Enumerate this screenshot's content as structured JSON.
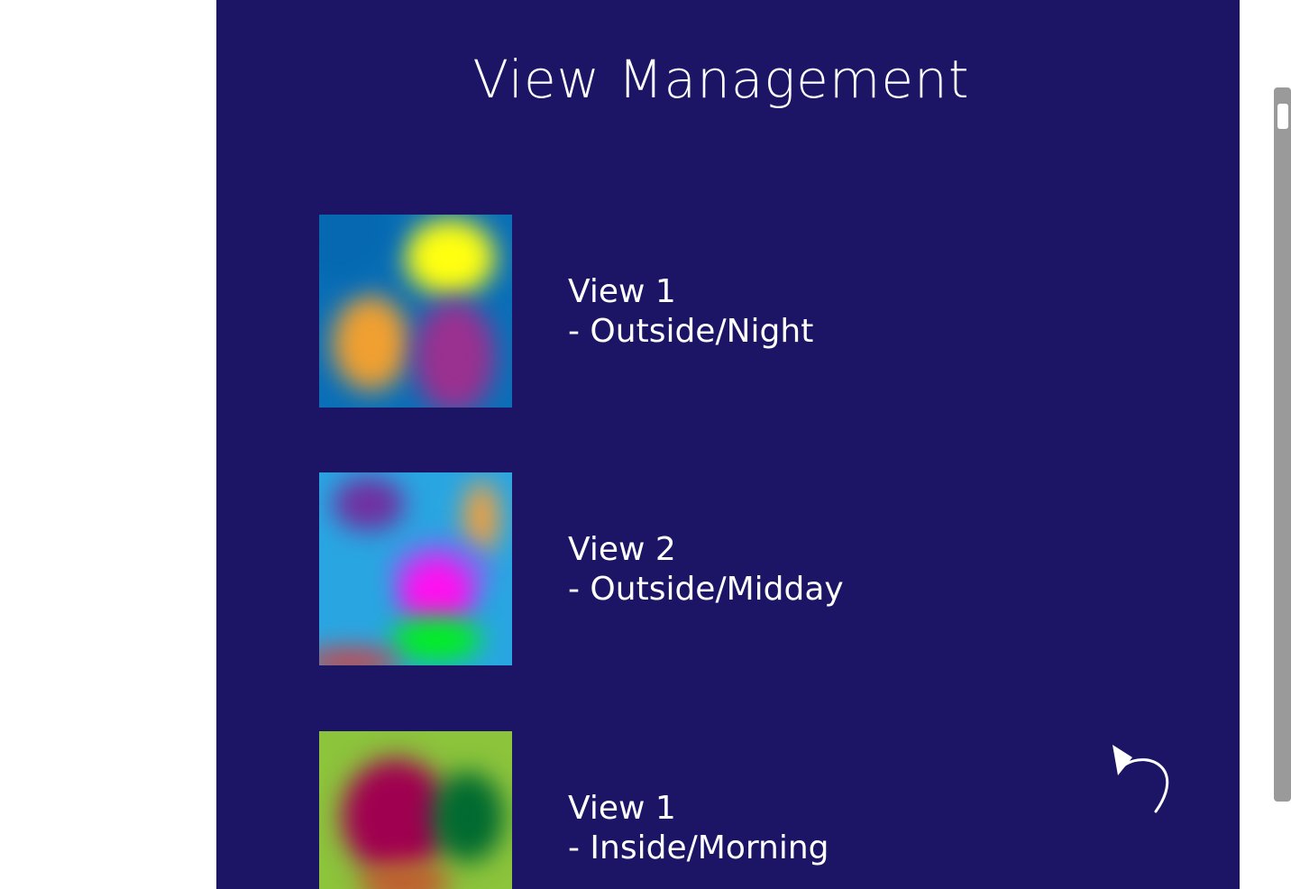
{
  "page": {
    "title": "View Management"
  },
  "views": [
    {
      "name": "View 1",
      "description": "- Outside/Night",
      "thumbnail_icon": "outside-night-thumbnail"
    },
    {
      "name": "View 2",
      "description": "- Outside/Midday",
      "thumbnail_icon": "outside-midday-thumbnail"
    },
    {
      "name": "View 1",
      "description": "- Inside/Morning",
      "thumbnail_icon": "inside-morning-thumbnail"
    }
  ],
  "controls": {
    "back_icon": "undo-arrow-icon"
  },
  "colors": {
    "panel_background": "#1c1464",
    "text": "#ffffff",
    "scrollbar_track": "#9a9a9a",
    "scrollbar_thumb": "#ffffff"
  }
}
